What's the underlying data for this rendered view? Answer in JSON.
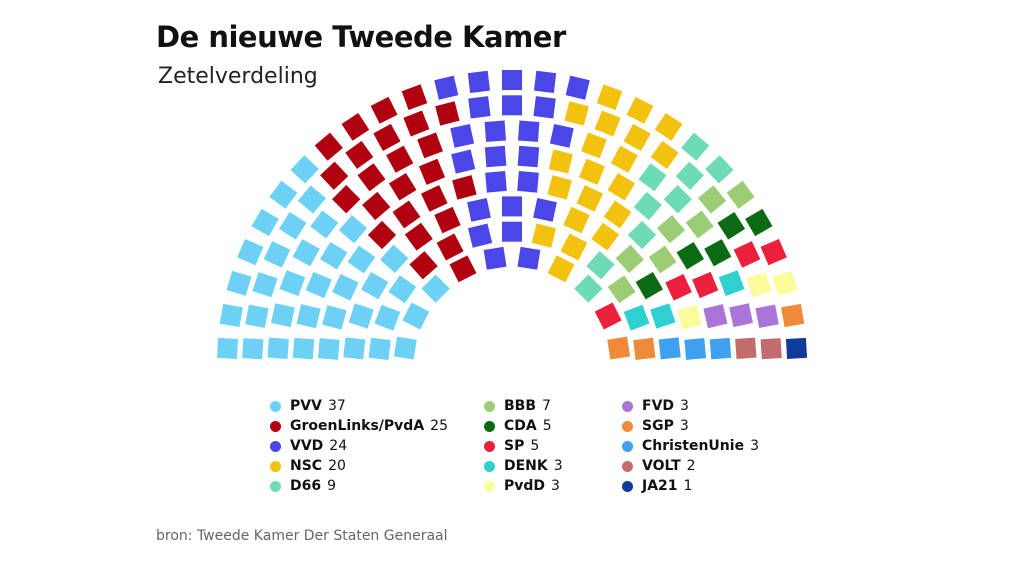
{
  "chart_data": {
    "type": "parliament",
    "title": "De nieuwe Tweede Kamer",
    "subtitle": "Zetelverdeling",
    "source": "bron: Tweede Kamer Der Staten Generaal",
    "series": [
      {
        "name": "PVV",
        "color": "#6dd0f5",
        "values": [
          37
        ]
      },
      {
        "name": "GroenLinks/PvdA",
        "color": "#b00010",
        "values": [
          25
        ]
      },
      {
        "name": "VVD",
        "color": "#4a46e8",
        "values": [
          24
        ]
      },
      {
        "name": "NSC",
        "color": "#f2c20f",
        "values": [
          20
        ]
      },
      {
        "name": "D66",
        "color": "#6ddbb5",
        "values": [
          9
        ]
      },
      {
        "name": "BBB",
        "color": "#9ccd75",
        "values": [
          7
        ]
      },
      {
        "name": "CDA",
        "color": "#0a6b12",
        "values": [
          5
        ]
      },
      {
        "name": "SP",
        "color": "#ec1f3d",
        "values": [
          5
        ]
      },
      {
        "name": "DENK",
        "color": "#2fd0d0",
        "values": [
          3
        ]
      },
      {
        "name": "PvdD",
        "color": "#fbfb9a",
        "values": [
          3
        ]
      },
      {
        "name": "FVD",
        "color": "#ab74d8",
        "values": [
          3
        ]
      },
      {
        "name": "SGP",
        "color": "#ee8a38",
        "values": [
          3
        ]
      },
      {
        "name": "ChristenUnie",
        "color": "#3ea0ee",
        "values": [
          3
        ]
      },
      {
        "name": "VOLT",
        "color": "#c46c6c",
        "values": [
          2
        ]
      },
      {
        "name": "JA21",
        "color": "#103b9a",
        "values": [
          1
        ]
      }
    ]
  }
}
